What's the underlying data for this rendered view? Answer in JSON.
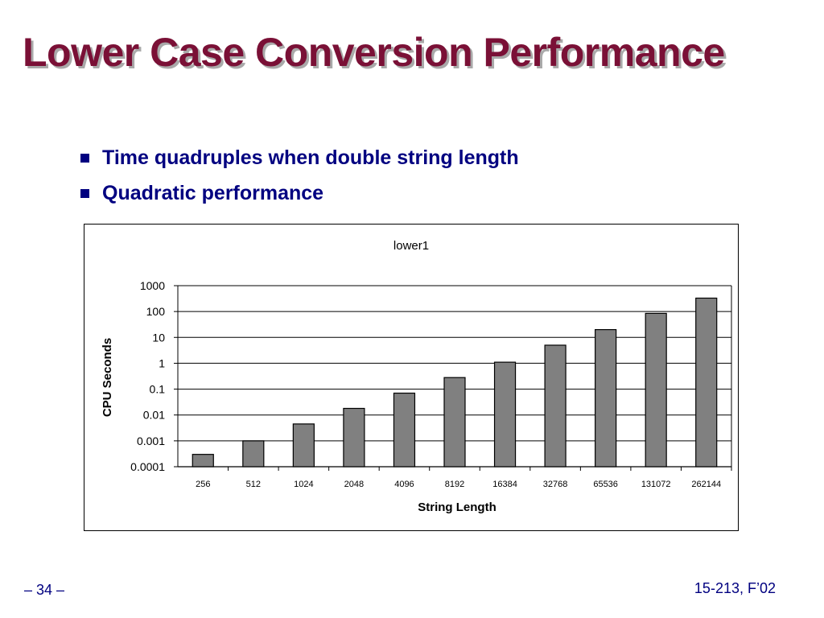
{
  "slide": {
    "title": "Lower Case Conversion Performance",
    "bullets": [
      "Time quadruples when double string length",
      "Quadratic performance"
    ],
    "footer_left": "– 34 –",
    "footer_right": "15-213, F’02"
  },
  "colors": {
    "title": "#7a1036",
    "text": "#000080",
    "bar_fill": "#808080"
  },
  "chart_data": {
    "type": "bar",
    "title": "lower1",
    "xlabel": "String Length",
    "ylabel": "CPU Seconds",
    "y_scale": "log",
    "ylim": [
      0.0001,
      1000
    ],
    "y_ticks": [
      "0.0001",
      "0.001",
      "0.01",
      "0.1",
      "1",
      "10",
      "100",
      "1000"
    ],
    "grid": true,
    "categories": [
      "256",
      "512",
      "1024",
      "2048",
      "4096",
      "8192",
      "16384",
      "32768",
      "65536",
      "131072",
      "262144"
    ],
    "values": [
      0.0003,
      0.001,
      0.0045,
      0.018,
      0.07,
      0.28,
      1.1,
      5.0,
      20,
      85,
      330
    ]
  }
}
